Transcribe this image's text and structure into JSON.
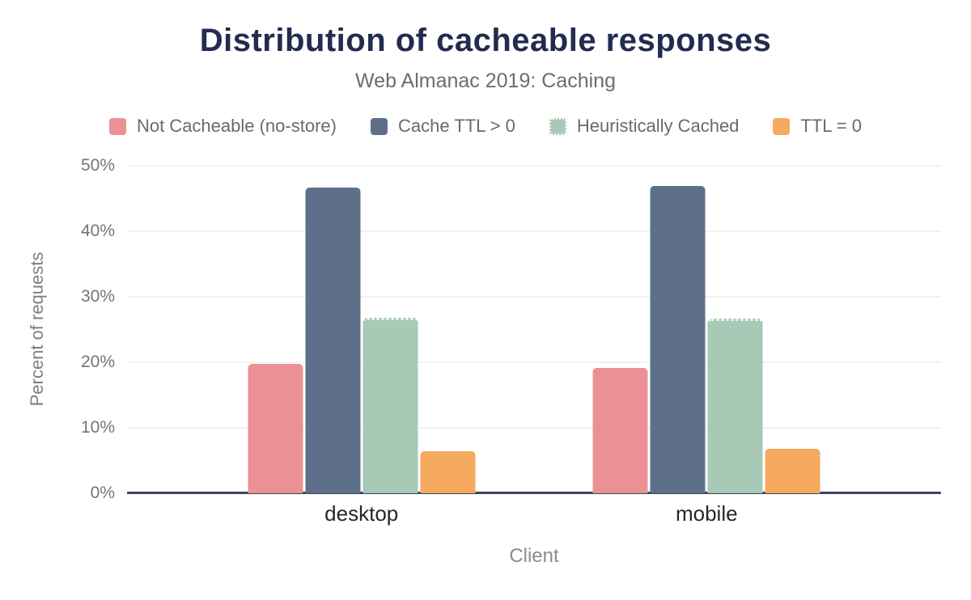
{
  "chart_data": {
    "type": "bar",
    "title": "Distribution of cacheable responses",
    "subtitle": "Web Almanac 2019: Caching",
    "categories": [
      "desktop",
      "mobile"
    ],
    "series": [
      {
        "name": "Not Cacheable (no-store)",
        "color": "#eb9196",
        "values": [
          19.8,
          19.1
        ]
      },
      {
        "name": "Cache TTL > 0",
        "color": "#5e7089",
        "values": [
          46.7,
          46.9
        ]
      },
      {
        "name": "Heuristically Cached",
        "color": "#a7c9b6",
        "values": [
          26.8,
          26.7
        ],
        "dotted_top": true
      },
      {
        "name": "TTL = 0",
        "color": "#f5aa60",
        "values": [
          6.4,
          6.8
        ]
      }
    ],
    "xlabel": "Client",
    "ylabel": "Percent of requests",
    "ylim": [
      0,
      50
    ],
    "yticks": [
      "0%",
      "10%",
      "20%",
      "30%",
      "40%",
      "50%"
    ],
    "grid": true,
    "legend_position": "top",
    "colors": {
      "title_text": "#212c4f",
      "muted_text": "#6d6d6d",
      "tick_text": "#70757d",
      "category_text": "#23262d",
      "axis_line": "#3b4458",
      "grid_line": "#f2f2f2",
      "background": "#ffffff"
    }
  }
}
